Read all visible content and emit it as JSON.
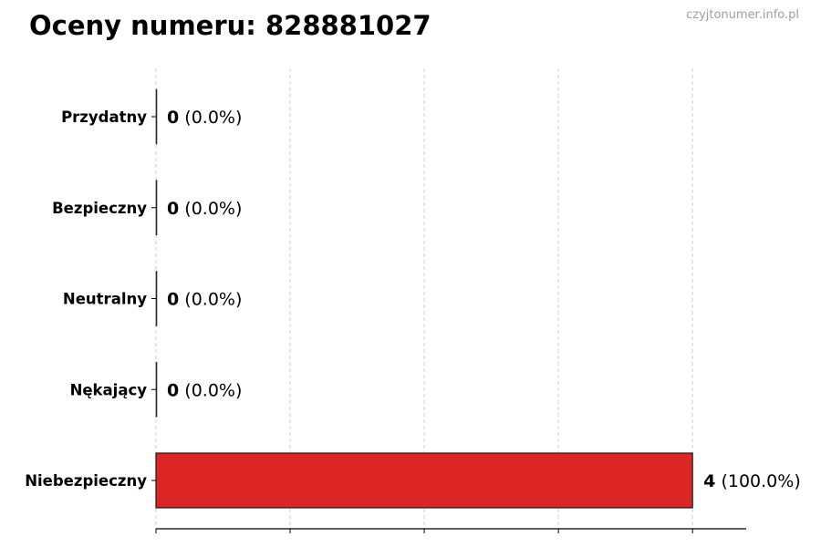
{
  "watermark": "czyjtonumer.info.pl",
  "chart_data": {
    "type": "bar",
    "orientation": "horizontal",
    "title": "Oceny numeru: 828881027",
    "categories": [
      "Przydatny",
      "Bezpieczny",
      "Neutralny",
      "Nękający",
      "Niebezpieczny"
    ],
    "values": [
      0,
      0,
      0,
      0,
      4
    ],
    "value_labels": [
      "(0.0%)",
      "(0.0%)",
      "(0.0%)",
      "(0.0%)",
      "(100.0%)"
    ],
    "xlim": [
      0,
      4.4
    ],
    "x_ticks": [
      0,
      1,
      2,
      3,
      4
    ],
    "x_tick_labels_shown": false,
    "grid": "x-dashed",
    "bar_colors": [
      "#1f1f1f",
      "#1f1f1f",
      "#1f1f1f",
      "#1f1f1f",
      "#dc2626"
    ],
    "edge_color": "#1a1a1a"
  }
}
